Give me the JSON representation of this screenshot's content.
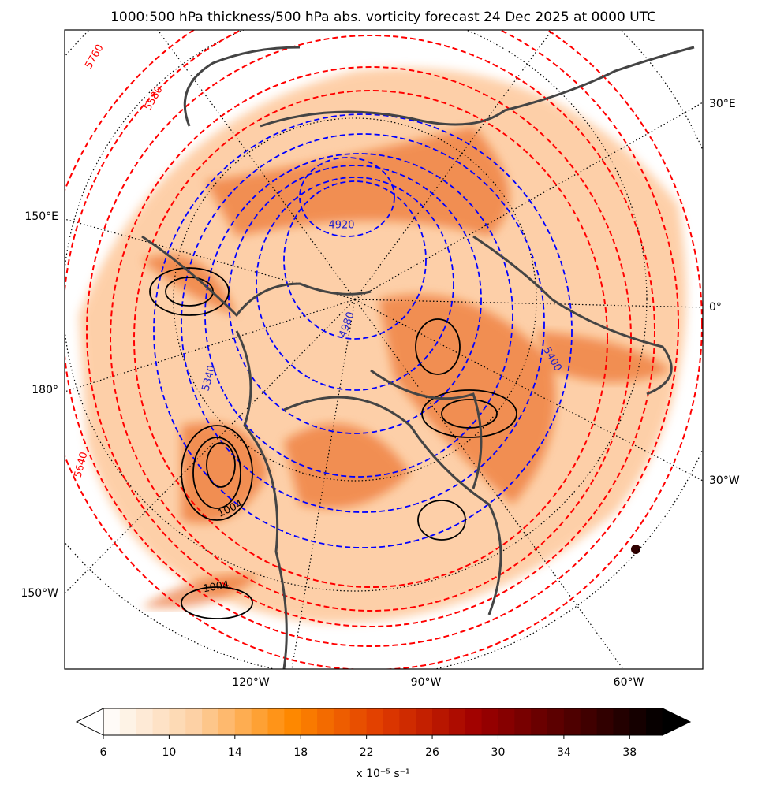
{
  "title": "1000:500 hPa thickness/500 hPa abs. vorticity forecast 24 Dec 2025 at 0000 UTC",
  "map": {
    "lon_labels_left": [
      "150°E",
      "180°",
      "150°W"
    ],
    "lon_labels_right": [
      "30°E",
      "0°",
      "30°W"
    ],
    "lon_labels_bottom": [
      "120°W",
      "90°W",
      "60°W"
    ],
    "contour_labels": [
      "5760",
      "5580",
      "5640",
      "4920",
      "4980",
      "5340",
      "5400",
      "1004",
      "1004"
    ]
  },
  "colorbar": {
    "range": [
      6,
      40
    ],
    "levels": [
      6,
      7,
      8,
      9,
      10,
      11,
      12,
      13,
      14,
      15,
      16,
      17,
      18,
      19,
      20,
      21,
      22,
      23,
      24,
      25,
      26,
      27,
      28,
      29,
      30,
      31,
      32,
      33,
      34,
      35,
      36,
      37,
      38,
      39,
      40
    ],
    "ticks": [
      6,
      10,
      14,
      18,
      22,
      26,
      30,
      34,
      38
    ],
    "cmap": [
      "#ffffff",
      "#fdd0a2",
      "#ff8a00",
      "#e03a00",
      "#a00000",
      "#500000",
      "#000000"
    ],
    "label": "x 10⁻⁵ s⁻¹"
  }
}
